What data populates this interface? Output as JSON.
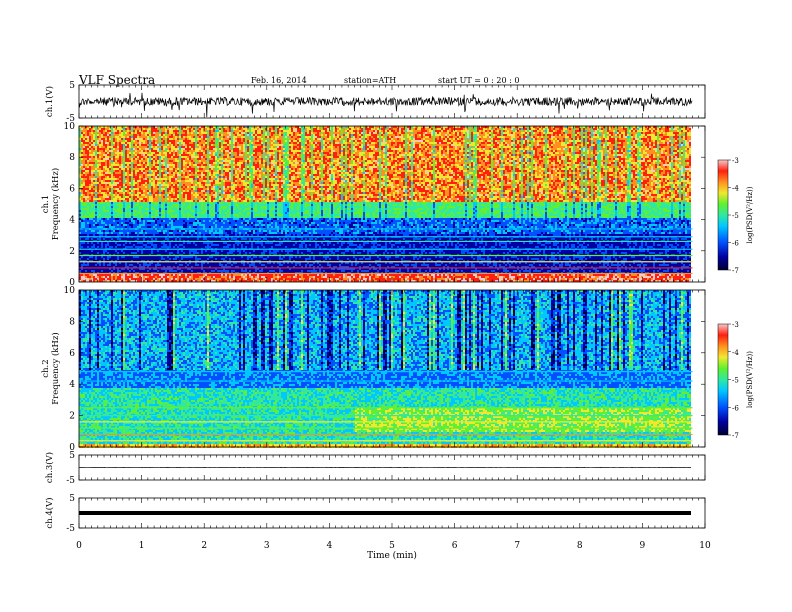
{
  "header": {
    "title": "VLF  Spectra",
    "date": "Feb. 16, 2014",
    "station": "station=ATH",
    "start": "start  UT  =   0  : 20 : 0"
  },
  "chart_data": [
    {
      "type": "line",
      "ylabel": "ch.1(V)",
      "ylim": [
        -5,
        5
      ],
      "y_ticks": [
        "5",
        "-5"
      ],
      "description_values": "noisy waveform centered near 0 V",
      "trace_color": "#000000"
    },
    {
      "type": "heatmap",
      "ylabel": "ch.1\nFrequency (kHz)",
      "ylim": [
        0,
        10
      ],
      "y_ticks": [
        "0",
        "2",
        "4",
        "6",
        "8",
        "10"
      ],
      "colorbar": {
        "label": "log(PSD(V²/Hz))",
        "range": [
          -7,
          -3
        ],
        "ticks": [
          "-3",
          "-4",
          "-5",
          "-6",
          "-7"
        ]
      }
    },
    {
      "type": "heatmap",
      "ylabel": "ch.2\nFrequency (kHz)",
      "ylim": [
        0,
        10
      ],
      "y_ticks": [
        "0",
        "2",
        "4",
        "6",
        "8",
        "10"
      ],
      "colorbar": {
        "label": "log(PSD(V²/Hz))",
        "range": [
          -7,
          -3
        ],
        "ticks": [
          "-3",
          "-4",
          "-5",
          "-6",
          "-7"
        ]
      }
    },
    {
      "type": "line",
      "ylabel": "ch.3(V)",
      "ylim": [
        -5,
        5
      ],
      "y_ticks": [
        "5",
        "-5"
      ]
    },
    {
      "type": "line",
      "ylabel": "ch.4(V)",
      "ylim": [
        -5,
        5
      ],
      "y_ticks": [
        "5",
        "-5"
      ]
    }
  ],
  "x_axis": {
    "label": "Time  (min)",
    "range": [
      0,
      10
    ],
    "ticks": [
      "0",
      "1",
      "2",
      "3",
      "4",
      "5",
      "6",
      "7",
      "8",
      "9",
      "10"
    ],
    "data_end": 9.8
  },
  "colors": {
    "scale": [
      "#000033",
      "#0000a0",
      "#0050ff",
      "#00c8ff",
      "#30e8a0",
      "#60f030",
      "#f0e830",
      "#ff9020",
      "#ff2010",
      "#f8c8c8"
    ]
  }
}
